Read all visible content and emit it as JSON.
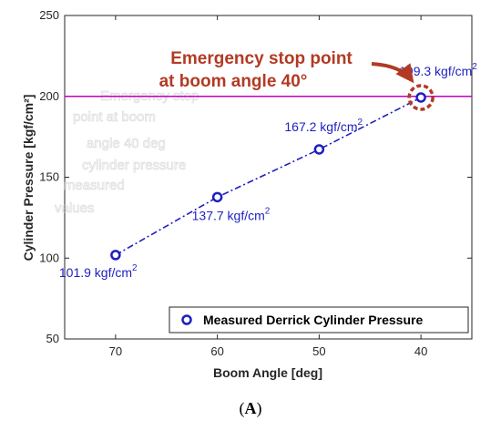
{
  "chart_data": {
    "type": "line",
    "xlabel": "Boom Angle [deg]",
    "ylabel": "Cylinder Pressure [kgf/cm²]",
    "x_reversed": true,
    "xlim": [
      75,
      35
    ],
    "ylim": [
      50,
      250
    ],
    "x_ticks": [
      70,
      60,
      50,
      40
    ],
    "y_ticks": [
      50,
      100,
      150,
      200,
      250
    ],
    "grid": false,
    "legend_position": "bottom-right",
    "series": [
      {
        "name": "Measured Derrick Cylinder Pressure",
        "color": "#1f1fbf",
        "line_style": "dash-dot",
        "marker": "circle",
        "x": [
          70,
          60,
          50,
          40
        ],
        "y": [
          101.9,
          137.7,
          167.2,
          199.3
        ],
        "point_labels": [
          "101.9 kgf/cm",
          "137.7 kgf/cm",
          "167.2 kgf/cm",
          "199.3 kgf/cm"
        ],
        "label_superscript": "2"
      }
    ],
    "reference_line": {
      "y": 200,
      "color": "#c000c0"
    },
    "annotation": {
      "line1": "Emergency stop point",
      "line2": "at boom angle 40°",
      "target_x": 40,
      "target_y": 199.3,
      "color": "#b23a24"
    }
  },
  "panel_label": "A",
  "colors": {
    "series": "#1f1fbf",
    "reference": "#c000c0",
    "annotation": "#b23a24",
    "axis": "#262626"
  }
}
